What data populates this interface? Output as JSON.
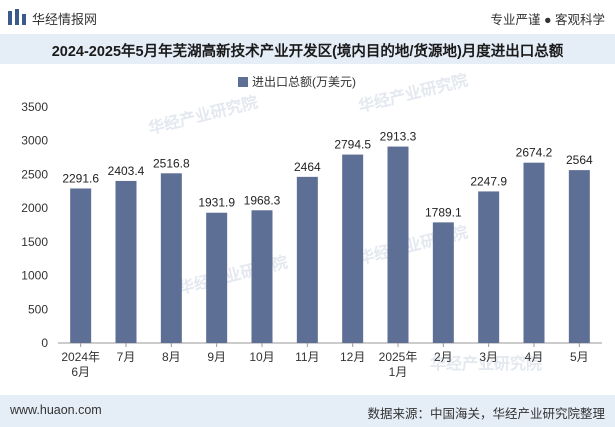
{
  "header": {
    "brand": "华经情报网",
    "tagline": "专业严谨 ● 客观科学",
    "title": "2024-2025年5月年芜湖高新技术产业开发区(境内目的地/货源地)月度进出口总额"
  },
  "footer": {
    "website": "www.huaon.com",
    "source": "数据来源：中国海关，华经产业研究院整理"
  },
  "watermark": "华经产业研究院",
  "colors": {
    "bar": "#5e6f96",
    "title_band": "#e5edf7"
  },
  "chart_data": {
    "type": "bar",
    "title": "",
    "legend": {
      "position": "top-center"
    },
    "categories": [
      "2024年\n6月",
      "7月",
      "8月",
      "9月",
      "10月",
      "11月",
      "12月",
      "2025年\n1月",
      "2月",
      "3月",
      "4月",
      "5月"
    ],
    "series": [
      {
        "name": "进出口总额(万美元)",
        "values": [
          2291.6,
          2403.4,
          2516.8,
          1931.9,
          1968.3,
          2464,
          2794.5,
          2913.3,
          1789.1,
          2247.9,
          2674.2,
          2564
        ],
        "labels": [
          "2291.6",
          "2403.4",
          "2516.8",
          "1931.9",
          "1968.3",
          "2464",
          "2794.5",
          "2913.3",
          "1789.1",
          "2247.9",
          "2674.2",
          "2564"
        ]
      }
    ],
    "ylim": [
      0,
      3500
    ],
    "yticks": [
      0,
      500,
      1000,
      1500,
      2000,
      2500,
      3000,
      3500
    ],
    "xlabel": "",
    "ylabel": "",
    "grid": false
  }
}
